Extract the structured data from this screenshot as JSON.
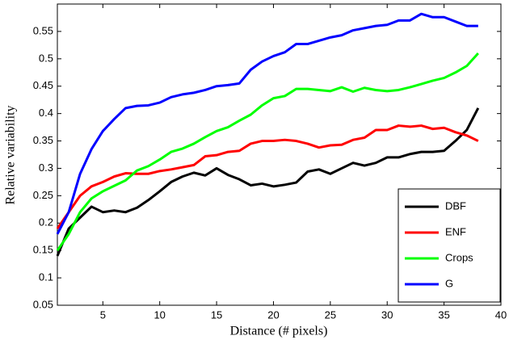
{
  "chart_data": {
    "type": "line",
    "xlabel": "Distance (# pixels)",
    "ylabel": "Relative variability",
    "x": [
      1,
      2,
      3,
      4,
      5,
      6,
      7,
      8,
      9,
      10,
      11,
      12,
      13,
      14,
      15,
      16,
      17,
      18,
      19,
      20,
      21,
      22,
      23,
      24,
      25,
      26,
      27,
      28,
      29,
      30,
      31,
      32,
      33,
      34,
      35,
      36,
      37,
      38
    ],
    "series": [
      {
        "name": "DBF",
        "color": "#000000",
        "values": [
          0.14,
          0.19,
          0.21,
          0.23,
          0.22,
          0.223,
          0.22,
          0.228,
          0.242,
          0.258,
          0.275,
          0.285,
          0.292,
          0.287,
          0.3,
          0.288,
          0.28,
          0.269,
          0.272,
          0.267,
          0.27,
          0.274,
          0.294,
          0.298,
          0.29,
          0.3,
          0.31,
          0.305,
          0.31,
          0.32,
          0.32,
          0.326,
          0.33,
          0.33,
          0.332,
          0.35,
          0.37,
          0.41
        ]
      },
      {
        "name": "ENF",
        "color": "#ff0000",
        "values": [
          0.19,
          0.22,
          0.25,
          0.267,
          0.275,
          0.285,
          0.291,
          0.29,
          0.29,
          0.295,
          0.298,
          0.302,
          0.306,
          0.322,
          0.324,
          0.33,
          0.332,
          0.345,
          0.35,
          0.35,
          0.352,
          0.35,
          0.345,
          0.338,
          0.342,
          0.343,
          0.352,
          0.356,
          0.37,
          0.37,
          0.378,
          0.376,
          0.378,
          0.372,
          0.374,
          0.366,
          0.36,
          0.35
        ]
      },
      {
        "name": "Crops",
        "color": "#00ff00",
        "values": [
          0.15,
          0.18,
          0.22,
          0.245,
          0.258,
          0.268,
          0.278,
          0.296,
          0.304,
          0.316,
          0.33,
          0.336,
          0.345,
          0.357,
          0.368,
          0.375,
          0.387,
          0.398,
          0.415,
          0.428,
          0.432,
          0.445,
          0.445,
          0.443,
          0.441,
          0.448,
          0.44,
          0.447,
          0.443,
          0.441,
          0.443,
          0.448,
          0.454,
          0.46,
          0.465,
          0.475,
          0.487,
          0.51
        ]
      },
      {
        "name": "G",
        "color": "#0000ff",
        "values": [
          0.18,
          0.22,
          0.29,
          0.335,
          0.368,
          0.39,
          0.41,
          0.414,
          0.415,
          0.42,
          0.43,
          0.435,
          0.438,
          0.443,
          0.45,
          0.452,
          0.455,
          0.48,
          0.495,
          0.505,
          0.512,
          0.527,
          0.527,
          0.533,
          0.539,
          0.543,
          0.552,
          0.556,
          0.56,
          0.562,
          0.57,
          0.57,
          0.582,
          0.576,
          0.576,
          0.568,
          0.56,
          0.56
        ]
      }
    ],
    "xlim": [
      1,
      40
    ],
    "xticks": [
      5,
      10,
      15,
      20,
      25,
      30,
      35,
      40
    ],
    "ylim": [
      0.05,
      0.6
    ],
    "yticks": [
      0.05,
      0.1,
      0.15,
      0.2,
      0.25,
      0.3,
      0.35,
      0.4,
      0.45,
      0.5,
      0.55
    ],
    "legend": "lower right"
  }
}
